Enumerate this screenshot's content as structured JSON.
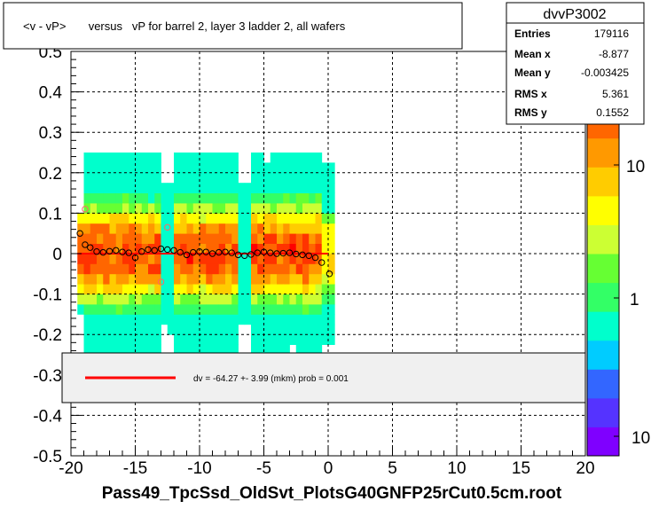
{
  "chart_data": {
    "type": "heatmap",
    "title": "<v - vP>       versus   vP for barrel 2, layer 3 ladder 2, all wafers",
    "xlabel": "Pass49_TpcSsd_OldSvt_PlotsG40GNFP25rCut0.5cm.root",
    "ylabel": "",
    "xlim": [
      -20,
      20
    ],
    "ylim": [
      -0.5,
      0.5
    ],
    "x_ticks": [
      "-20",
      "-15",
      "-10",
      "-5",
      "0",
      "5",
      "10",
      "15",
      "20"
    ],
    "y_ticks": [
      "-0.5",
      "-0.4",
      "-0.3",
      "-0.2",
      "-0.1",
      "0",
      "0.1",
      "0.2",
      "0.3",
      "0.4",
      "0.5"
    ],
    "grid": true,
    "z_scale": "log",
    "z_ticks": [
      "10",
      "1",
      "10"
    ],
    "stats": {
      "name": "dvvP3002",
      "rows": [
        {
          "label": "Entries",
          "value": "179116"
        },
        {
          "label": "Mean x",
          "value": "-8.877"
        },
        {
          "label": "Mean y",
          "value": "-0.003425"
        },
        {
          "label": "RMS x",
          "value": "5.361"
        },
        {
          "label": "RMS y",
          "value": "0.1552"
        }
      ]
    },
    "fit": {
      "label": "dv =  -64.27 +-  3.99 (mkm) prob = 0.001",
      "color": "#ff0000",
      "x_range": [
        -19.5,
        0
      ],
      "y": -3e-05
    },
    "profile_points": [
      {
        "x": -19.3,
        "y": 0.05
      },
      {
        "x": -18.9,
        "y": 0.022
      },
      {
        "x": -18.5,
        "y": 0.015
      },
      {
        "x": -18.0,
        "y": 0.005
      },
      {
        "x": -17.5,
        "y": 0.003
      },
      {
        "x": -17.0,
        "y": 0.006
      },
      {
        "x": -16.5,
        "y": 0.008
      },
      {
        "x": -16.0,
        "y": 0.004
      },
      {
        "x": -15.5,
        "y": 0.002
      },
      {
        "x": -15.0,
        "y": -0.01
      },
      {
        "x": -14.5,
        "y": 0.005
      },
      {
        "x": -14.0,
        "y": 0.01
      },
      {
        "x": -13.5,
        "y": 0.008
      },
      {
        "x": -13.0,
        "y": 0.012
      },
      {
        "x": -12.5,
        "y": 0.01
      },
      {
        "x": -12.0,
        "y": 0.008
      },
      {
        "x": -11.5,
        "y": 0.003
      },
      {
        "x": -11.0,
        "y": -0.003
      },
      {
        "x": -10.5,
        "y": 0.003
      },
      {
        "x": -10.0,
        "y": 0.005
      },
      {
        "x": -9.5,
        "y": 0.004
      },
      {
        "x": -9.0,
        "y": 0.0
      },
      {
        "x": -8.5,
        "y": 0.003
      },
      {
        "x": -8.0,
        "y": 0.004
      },
      {
        "x": -7.5,
        "y": 0.002
      },
      {
        "x": -7.0,
        "y": -0.003
      },
      {
        "x": -6.5,
        "y": -0.005
      },
      {
        "x": -6.0,
        "y": -0.002
      },
      {
        "x": -5.5,
        "y": 0.002
      },
      {
        "x": -5.0,
        "y": 0.004
      },
      {
        "x": -4.5,
        "y": 0.002
      },
      {
        "x": -4.0,
        "y": 0.0
      },
      {
        "x": -3.5,
        "y": 0.001
      },
      {
        "x": -3.0,
        "y": 0.002
      },
      {
        "x": -2.5,
        "y": -0.001
      },
      {
        "x": -2.0,
        "y": -0.003
      },
      {
        "x": -1.5,
        "y": -0.005
      },
      {
        "x": -1.0,
        "y": -0.01
      },
      {
        "x": -0.5,
        "y": -0.022
      },
      {
        "x": 0.1,
        "y": -0.05
      }
    ],
    "outlier_points": [
      {
        "x": -18.9,
        "y": 0.11
      },
      {
        "x": -13.0,
        "y": -0.07
      },
      {
        "x": -12.5,
        "y": 0.065
      }
    ],
    "colors": {
      "frame": "#000000",
      "grid": "#000000",
      "marker": "#000000",
      "palette": [
        "#7f00ff",
        "#5533ff",
        "#3366ff",
        "#00ccff",
        "#00ffcc",
        "#33ff66",
        "#66ff33",
        "#ccff33",
        "#ffff00",
        "#ffcc00",
        "#ff9900",
        "#ff6600",
        "#ff3300",
        "#ff0000"
      ]
    }
  }
}
